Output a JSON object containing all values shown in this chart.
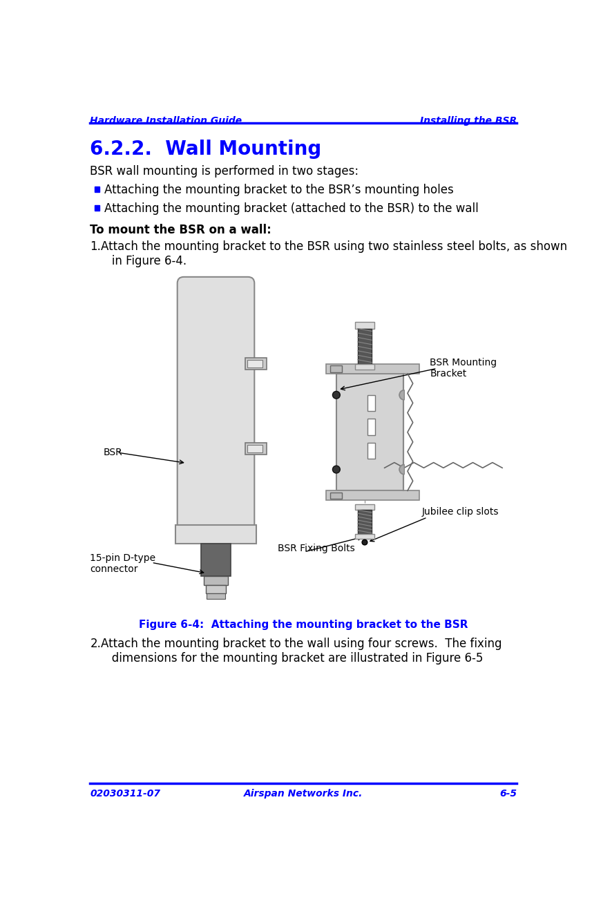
{
  "header_left": "Hardware Installation Guide",
  "header_right": "Installing the BSR",
  "header_color": "#0000FF",
  "header_line_color": "#0000FF",
  "footer_left": "02030311-07",
  "footer_center": "Airspan Networks Inc.",
  "footer_right": "6-5",
  "footer_color": "#0000FF",
  "section_title": "6.2.2.  Wall Mounting",
  "section_title_color": "#0000FF",
  "body_color": "#000000",
  "intro_text": "BSR wall mounting is performed in two stages:",
  "bullet1": "Attaching the mounting bracket to the BSR’s mounting holes",
  "bullet2": "Attaching the mounting bracket (attached to the BSR) to the wall",
  "bold_text": "To mount the BSR on a wall:",
  "step1_num": "1.",
  "step1_indent": "   Attach the mounting bracket to the BSR using two stainless steel bolts, as shown\n   in Figure 6-4.",
  "step2_num": "2.",
  "step2_indent": "   Attach the mounting bracket to the wall using four screws. The fixing\n   dimensions for the mounting bracket are illustrated in Figure 6-5",
  "figure_caption": "Figure 6-4:  Attaching the mounting bracket to the BSR",
  "figure_caption_color": "#0000FF",
  "label_bsr": "BSR",
  "label_jubilee": "Jubilee clip slots",
  "label_bsr_mounting": "BSR Mounting\nBracket",
  "label_fixing_bolts": "BSR Fixing Bolts",
  "label_15pin": "15-pin D-type\nconnector",
  "bg_color": "#FFFFFF",
  "bsr_body_color": "#E0E0E0",
  "bsr_edge_color": "#888888",
  "bracket_color": "#D4D4D4",
  "bracket_edge": "#888888",
  "dark_connector": "#666666",
  "flange_color": "#C8C8C8"
}
